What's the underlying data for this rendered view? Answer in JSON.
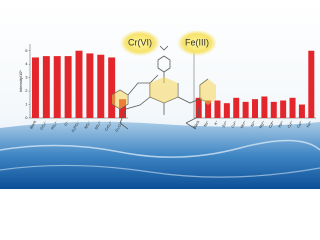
{
  "chart_data": [
    {
      "type": "bar",
      "annotation": "Cr(VI)",
      "ylabel": "Intensity/10⁵",
      "categories": [
        "Blank",
        "CO₃²⁻",
        "PO₄³⁻",
        "Cl⁻",
        "H₂PO₄⁻",
        "NO₃⁻",
        "SO₄²⁻",
        "CrO₄²⁻",
        "Cr₂O₇²⁻"
      ],
      "values": [
        4.5,
        4.6,
        4.6,
        4.6,
        5.0,
        4.8,
        4.7,
        4.5,
        1.4
      ],
      "color": "#e3262b",
      "ylim": [
        0,
        5.5
      ],
      "yticks": [
        0,
        1,
        2,
        3,
        4,
        5
      ]
    },
    {
      "type": "bar",
      "annotation": "Fe(III)",
      "categories": [
        "Blank",
        "Na⁺",
        "K⁺",
        "Zn²⁺",
        "Co²⁺",
        "Mn²⁺",
        "Ni²⁺",
        "Mg²⁺",
        "Cd²⁺",
        "Pb²⁺",
        "Cu²⁺",
        "Ca²⁺",
        "Fe³⁺"
      ],
      "values": [
        1.5,
        1.3,
        1.3,
        1.1,
        1.5,
        1.2,
        1.4,
        1.6,
        1.2,
        1.3,
        1.5,
        1.0,
        5.0
      ],
      "color": "#e3262b",
      "ylim": [
        0,
        5.5
      ]
    }
  ]
}
